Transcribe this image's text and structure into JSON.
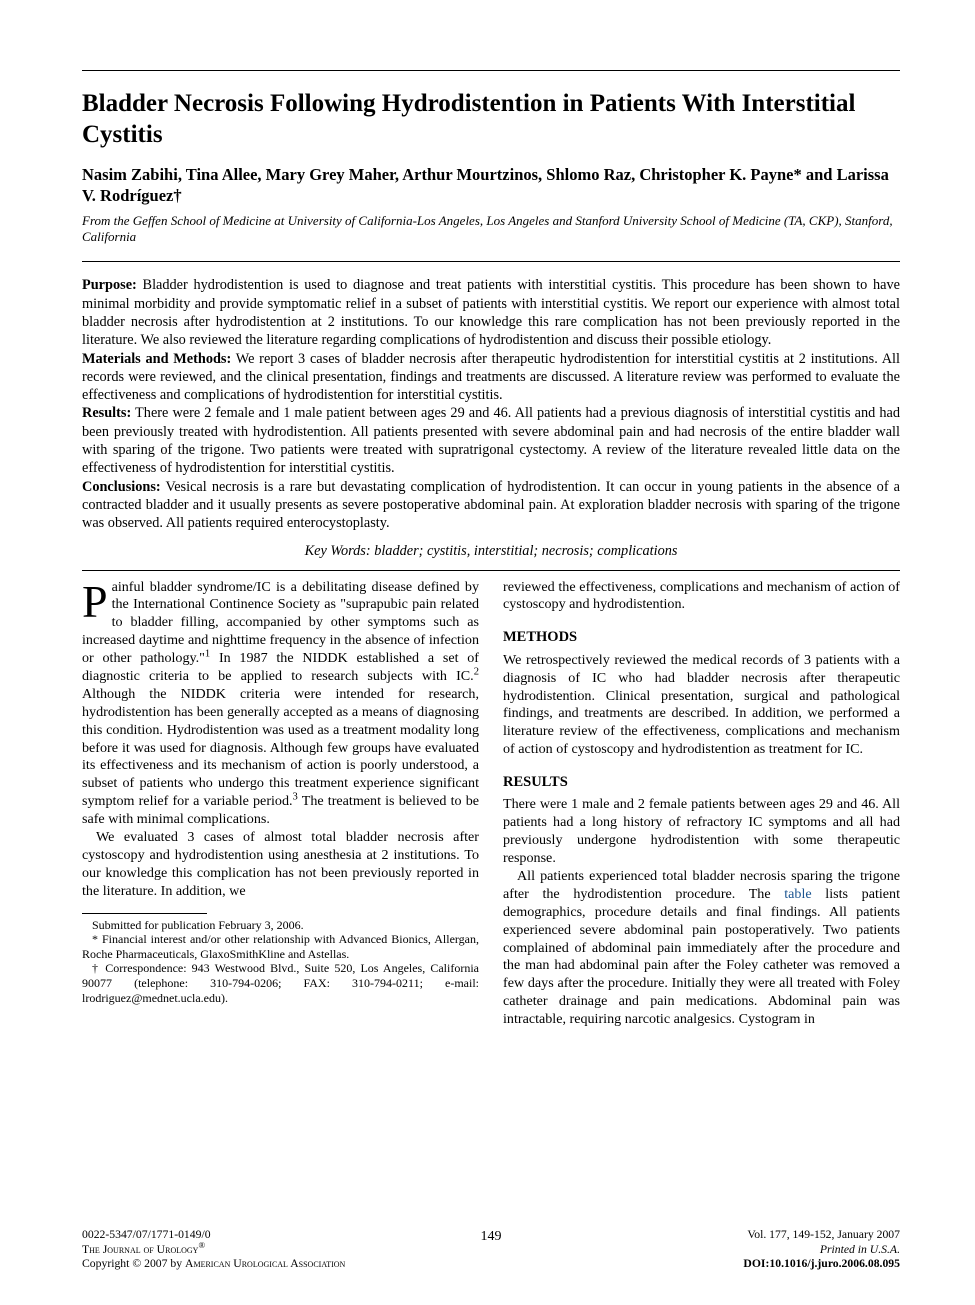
{
  "title": "Bladder Necrosis Following Hydrodistention in Patients With Interstitial Cystitis",
  "authors": "Nasim Zabihi, Tina Allee, Mary Grey Maher, Arthur Mourtzinos, Shlomo Raz, Christopher K. Payne* and Larissa V. Rodríguez†",
  "affiliation": "From the Geffen School of Medicine at University of California-Los Angeles, Los Angeles and Stanford University School of Medicine (TA, CKP), Stanford, California",
  "abstract": {
    "purpose_label": "Purpose:",
    "purpose_text": " Bladder hydrodistention is used to diagnose and treat patients with interstitial cystitis. This procedure has been shown to have minimal morbidity and provide symptomatic relief in a subset of patients with interstitial cystitis. We report our experience with almost total bladder necrosis after hydrodistention at 2 institutions. To our knowledge this rare complication has not been previously reported in the literature. We also reviewed the literature regarding complications of hydrodistention and discuss their possible etiology.",
    "methods_label": "Materials and Methods:",
    "methods_text": " We report 3 cases of bladder necrosis after therapeutic hydrodistention for interstitial cystitis at 2 institutions. All records were reviewed, and the clinical presentation, findings and treatments are discussed. A literature review was performed to evaluate the effectiveness and complications of hydrodistention for interstitial cystitis.",
    "results_label": "Results:",
    "results_text": " There were 2 female and 1 male patient between ages 29 and 46. All patients had a previous diagnosis of interstitial cystitis and had been previously treated with hydrodistention. All patients presented with severe abdominal pain and had necrosis of the entire bladder wall with sparing of the trigone. Two patients were treated with supratrigonal cystectomy. A review of the literature revealed little data on the effectiveness of hydrodistention for interstitial cystitis.",
    "conclusions_label": "Conclusions:",
    "conclusions_text": " Vesical necrosis is a rare but devastating complication of hydrodistention. It can occur in young patients in the absence of a contracted bladder and it usually presents as severe postoperative abdominal pain. At exploration bladder necrosis with sparing of the trigone was observed. All patients required enterocystoplasty."
  },
  "keywords": "Key Words: bladder; cystitis, interstitial; necrosis; complications",
  "body": {
    "intro_dropcap": "P",
    "intro_p1_a": "ainful bladder syndrome/IC is a debilitating disease defined by the International Continence Society as \"suprapubic pain related to bladder filling, accompanied by other symptoms such as increased daytime and nighttime frequency in the absence of infection or other pathology.\"",
    "intro_p1_ref1": "1",
    "intro_p1_b": " In 1987 the NIDDK established a set of diagnostic criteria to be applied to research subjects with IC.",
    "intro_p1_ref2": "2",
    "intro_p1_c": " Although the NIDDK criteria were intended for research, hydrodistention has been generally accepted as a means of diagnosing this condition. Hydrodistention was used as a treatment modality long before it was used for diagnosis. Although few groups have evaluated its effectiveness and its mechanism of action is poorly understood, a subset of patients who undergo this treatment experience significant symptom relief for a variable period.",
    "intro_p1_ref3": "3",
    "intro_p1_d": " The treatment is believed to be safe with minimal complications.",
    "intro_p2": "We evaluated 3 cases of almost total bladder necrosis after cystoscopy and hydrodistention using anesthesia at 2 institutions. To our knowledge this complication has not been previously reported in the literature. In addition, we ",
    "intro_p2_tail": "reviewed the effectiveness, complications and mechanism of action of cystoscopy and hydrodistention.",
    "methods_heading": "METHODS",
    "methods_p1": "We retrospectively reviewed the medical records of 3 patients with a diagnosis of IC who had bladder necrosis after therapeutic hydrodistention. Clinical presentation, surgical and pathological findings, and treatments are described. In addition, we performed a literature review of the effectiveness, complications and mechanism of action of cystoscopy and hydrodistention as treatment for IC.",
    "results_heading": "RESULTS",
    "results_p1": "There were 1 male and 2 female patients between ages 29 and 46. All patients had a long history of refractory IC symptoms and all had previously undergone hydrodistention with some therapeutic response.",
    "results_p2_a": "All patients experienced total bladder necrosis sparing the trigone after the hydrodistention procedure. The ",
    "results_p2_link": "table",
    "results_p2_b": " lists patient demographics, procedure details and final findings. All patients experienced severe abdominal pain postoperatively. Two patients complained of abdominal pain immediately after the procedure and the man had abdominal pain after the Foley catheter was removed a few days after the procedure. Initially they were all treated with Foley catheter drainage and pain medications. Abdominal pain was intractable, requiring narcotic analgesics. Cystogram in"
  },
  "footnotes": {
    "submitted": "Submitted for publication February 3, 2006.",
    "disclosure": "* Financial interest and/or other relationship with Advanced Bionics, Allergan, Roche Pharmaceuticals, GlaxoSmithKline and Astellas.",
    "correspondence": "† Correspondence: 943 Westwood Blvd., Suite 520, Los Angeles, California 90077 (telephone: 310-794-0206; FAX: 310-794-0211; e-mail: lrodriguez@mednet.ucla.edu)."
  },
  "footer": {
    "issn": "0022-5347/07/1771-0149/0",
    "journal": "The Journal of Urology",
    "regmark": "®",
    "copyright": "Copyright © 2007 by American Urological Association",
    "page": "149",
    "vol": "Vol. 177, 149-152, January 2007",
    "printed": "Printed in U.S.A.",
    "doi_label": "DOI:",
    "doi": "10.1016/j.juro.2006.08.095"
  }
}
